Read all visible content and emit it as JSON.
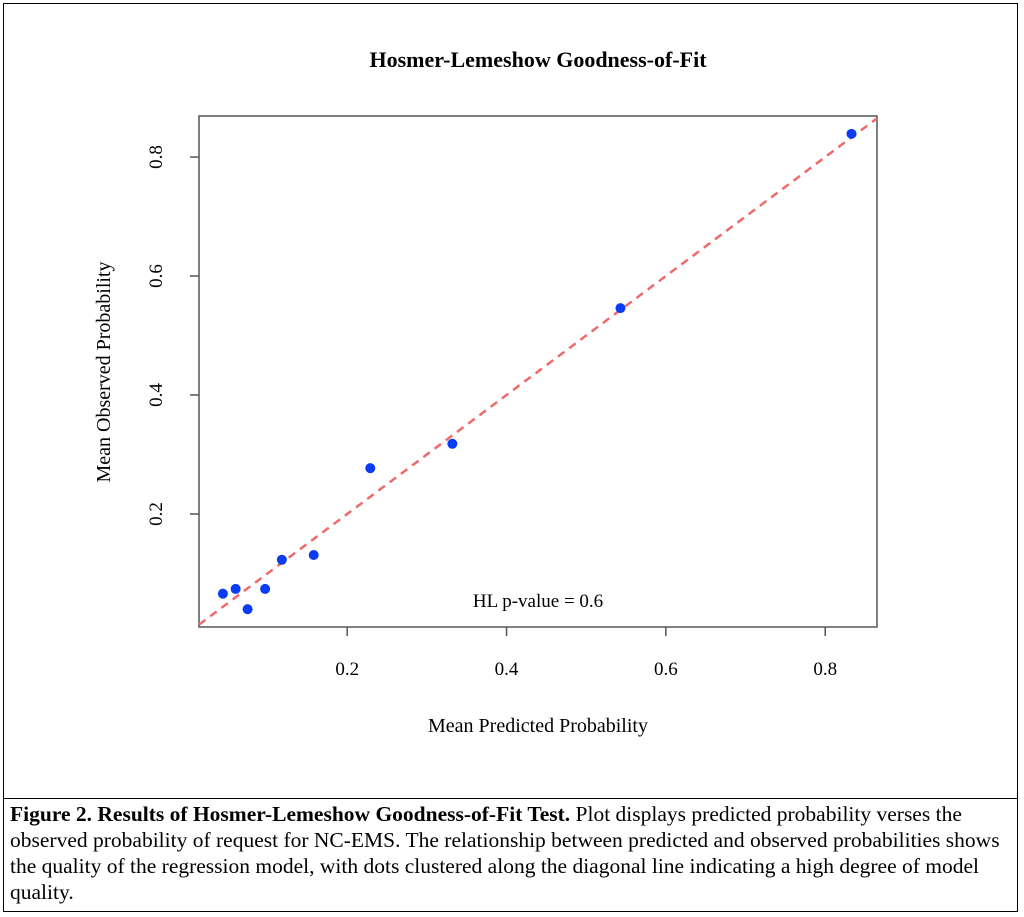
{
  "chart_data": {
    "type": "scatter",
    "title": "Hosmer-Lemeshow Goodness-of-Fit",
    "xlabel": "Mean Predicted Probability",
    "ylabel": "Mean Observed Probability",
    "xlim": [
      0.014,
      0.865
    ],
    "ylim": [
      0.01,
      0.869
    ],
    "xticks": [
      0.2,
      0.4,
      0.6,
      0.8
    ],
    "yticks": [
      0.2,
      0.4,
      0.6,
      0.8
    ],
    "xtick_labels": [
      "0.2",
      "0.4",
      "0.6",
      "0.8"
    ],
    "ytick_labels": [
      "0.2",
      "0.4",
      "0.6",
      "0.8"
    ],
    "grid": false,
    "points": [
      {
        "x": 0.044,
        "y": 0.066
      },
      {
        "x": 0.06,
        "y": 0.074
      },
      {
        "x": 0.075,
        "y": 0.04
      },
      {
        "x": 0.097,
        "y": 0.074
      },
      {
        "x": 0.118,
        "y": 0.123
      },
      {
        "x": 0.158,
        "y": 0.131
      },
      {
        "x": 0.229,
        "y": 0.277
      },
      {
        "x": 0.332,
        "y": 0.318
      },
      {
        "x": 0.543,
        "y": 0.546
      },
      {
        "x": 0.833,
        "y": 0.839
      }
    ],
    "reference_line": {
      "type": "y=x",
      "style": "dashed",
      "color": "#f06a6a"
    },
    "point_color": "#0a3cf5",
    "annotation": "HL p-value = 0.6"
  },
  "caption": {
    "bold": "Figure 2. Results of Hosmer-Lemeshow Goodness-of-Fit Test.",
    "text": " Plot displays predicted probability verses the observed probability of request for NC-EMS. The relationship between predicted and observed probabilities shows the quality of the regression model, with dots clustered along the diagonal line indicating a high degree of model quality."
  }
}
